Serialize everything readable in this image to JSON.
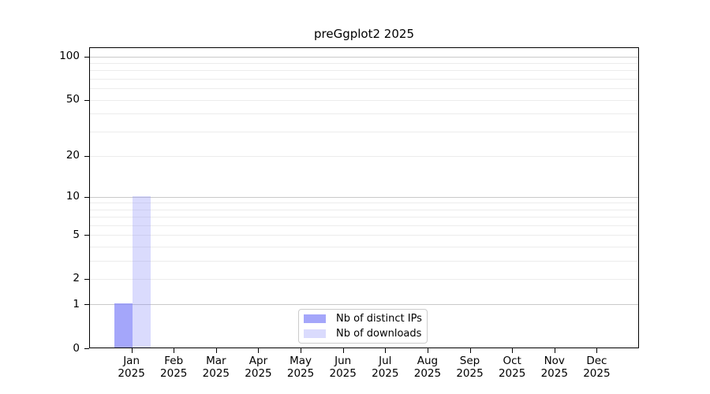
{
  "figure": {
    "background": "#ffffff",
    "frame_color": "#000000",
    "text_color": "#000000"
  },
  "chart_data": {
    "type": "bar",
    "title": "preGgplot2 2025",
    "categories": [
      "Jan",
      "Feb",
      "Mar",
      "Apr",
      "May",
      "Jun",
      "Jul",
      "Aug",
      "Sep",
      "Oct",
      "Nov",
      "Dec"
    ],
    "x_tick_year": "2025",
    "series": [
      {
        "name": "Nb of distinct IPs",
        "color": "#8588f8bf",
        "values": [
          1,
          0,
          0,
          0,
          0,
          0,
          0,
          0,
          0,
          0,
          0,
          0
        ]
      },
      {
        "name": "Nb of downloads",
        "color": "#8588f84d",
        "values": [
          10,
          0,
          0,
          0,
          0,
          0,
          0,
          0,
          0,
          0,
          0,
          0
        ]
      }
    ],
    "yscale": "log1p",
    "ylim": [
      0,
      116
    ],
    "y_ticks": [
      0,
      1,
      2,
      5,
      10,
      20,
      50,
      100
    ],
    "grid_major": [
      1,
      10,
      100
    ],
    "grid_minor": [
      2,
      3,
      4,
      5,
      6,
      7,
      8,
      9,
      20,
      30,
      40,
      50,
      60,
      70,
      80,
      90
    ],
    "grid_major_color": "#c9c9c9",
    "grid_minor_color": "#ececec",
    "legend_position": "lower center",
    "xlabel": "",
    "ylabel": ""
  }
}
